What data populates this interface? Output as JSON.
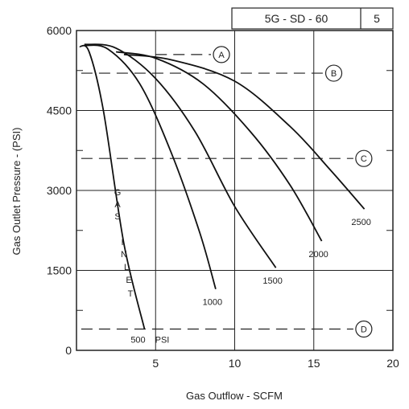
{
  "chart_data": {
    "type": "line",
    "header": {
      "code": "5G - SD - 60",
      "number": "5"
    },
    "xlabel": "Gas Outflow - SCFM",
    "ylabel": "Gas Outlet Pressure - (PSI)",
    "xlim": [
      0,
      20
    ],
    "ylim": [
      0,
      6000
    ],
    "x_ticks": [
      5,
      10,
      15,
      20
    ],
    "x_tick_labels": [
      "5",
      "10",
      "15",
      "20"
    ],
    "y_ticks": [
      0,
      1500,
      3000,
      4500,
      6000
    ],
    "y_tick_labels": [
      "0",
      "1500",
      "3000",
      "4500",
      "6000"
    ],
    "grid": true,
    "inlet_label": "GAS INLET",
    "inlet_letters": [
      "G",
      "A",
      "S",
      "I",
      "N",
      "L",
      "E",
      "T"
    ],
    "series": [
      {
        "name": "500",
        "units": "PSI",
        "points": [
          [
            0.2,
            5700
          ],
          [
            0.8,
            5600
          ],
          [
            1.7,
            4500
          ],
          [
            3.0,
            2000
          ],
          [
            4.3,
            400
          ]
        ]
      },
      {
        "name": "1000",
        "points": [
          [
            0.5,
            5720
          ],
          [
            2.0,
            5650
          ],
          [
            4.0,
            5000
          ],
          [
            6.0,
            3700
          ],
          [
            7.8,
            2200
          ],
          [
            8.8,
            1150
          ]
        ]
      },
      {
        "name": "1500",
        "points": [
          [
            0.5,
            5740
          ],
          [
            2.5,
            5670
          ],
          [
            5.0,
            5100
          ],
          [
            7.5,
            4100
          ],
          [
            10.0,
            2700
          ],
          [
            12.6,
            1550
          ]
        ]
      },
      {
        "name": "2000",
        "points": [
          [
            2.5,
            5600
          ],
          [
            5.0,
            5480
          ],
          [
            8.0,
            5000
          ],
          [
            11.0,
            4100
          ],
          [
            13.5,
            3100
          ],
          [
            15.5,
            2050
          ]
        ]
      },
      {
        "name": "2500",
        "points": [
          [
            3.0,
            5550
          ],
          [
            6.0,
            5450
          ],
          [
            10.0,
            5050
          ],
          [
            13.5,
            4200
          ],
          [
            16.0,
            3400
          ],
          [
            18.2,
            2650
          ]
        ]
      }
    ],
    "reference_lines": [
      {
        "id": "A",
        "y": 5550,
        "x_start": 5.0,
        "x_end": 8.5
      },
      {
        "id": "B",
        "y": 5200,
        "x_start": 0.3,
        "x_end": 15.6
      },
      {
        "id": "C",
        "y": 3600,
        "x_start": 0.3,
        "x_end": 17.5
      },
      {
        "id": "D",
        "y": 400,
        "x_start": 0.3,
        "x_end": 17.5
      }
    ]
  }
}
